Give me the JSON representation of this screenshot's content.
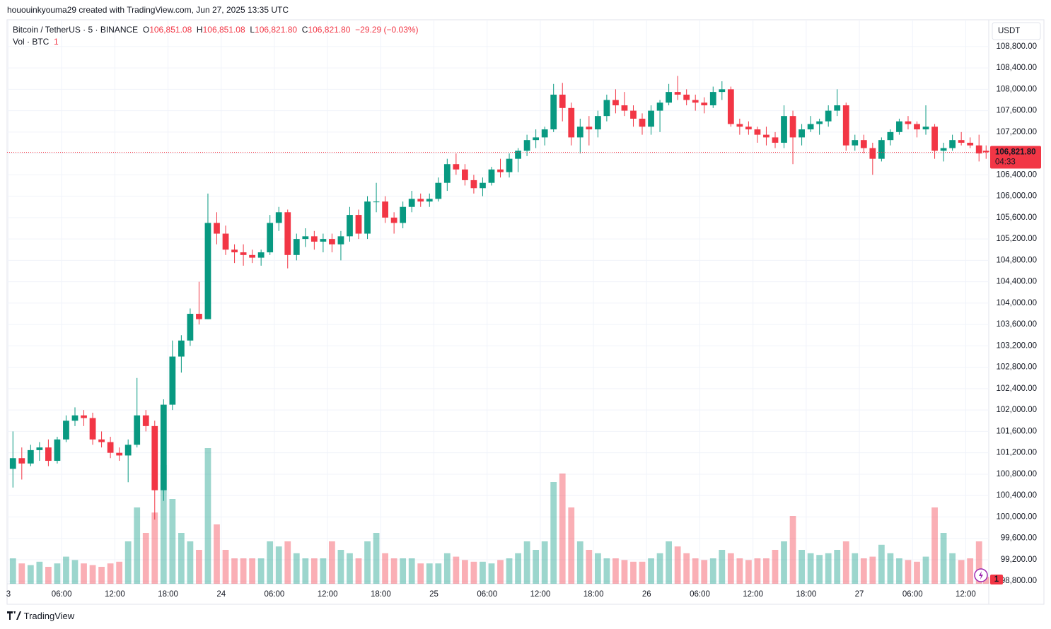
{
  "header": {
    "watermark": "hououinkyouma29 created with TradingView.com, Jun 27, 2025 13:35 UTC",
    "footer": "TradingView"
  },
  "chart_data": {
    "type": "candlestick",
    "legend": {
      "symbol": "Bitcoin / TetherUS · 5 · BINANCE",
      "o_label": "O",
      "o": "106,851.08",
      "h_label": "H",
      "h": "106,851.08",
      "l_label": "L",
      "l": "106,821.80",
      "c_label": "C",
      "c": "106,821.80",
      "change": "−29.29 (−0.03%)"
    },
    "vol_legend": {
      "label": "Vol · BTC",
      "value": "1"
    },
    "currency": "USDT",
    "alerts_badge": "1",
    "up_color": "#089981",
    "down_color": "#f23645",
    "grid": true,
    "last_price": {
      "value": 106821.8,
      "label": "106,821.80"
    },
    "countdown": "04:33",
    "xlim": [
      -0.16,
      110.6
    ],
    "xticks": [
      {
        "value": 0,
        "label": "3"
      },
      {
        "value": 6,
        "label": "06:00"
      },
      {
        "value": 12,
        "label": "12:00"
      },
      {
        "value": 18,
        "label": "18:00"
      },
      {
        "value": 24,
        "label": "24"
      },
      {
        "value": 30,
        "label": "06:00"
      },
      {
        "value": 36,
        "label": "12:00"
      },
      {
        "value": 42,
        "label": "18:00"
      },
      {
        "value": 48,
        "label": "25"
      },
      {
        "value": 54,
        "label": "06:00"
      },
      {
        "value": 60,
        "label": "12:00"
      },
      {
        "value": 66,
        "label": "18:00"
      },
      {
        "value": 72,
        "label": "26"
      },
      {
        "value": 78,
        "label": "06:00"
      },
      {
        "value": 84,
        "label": "12:00"
      },
      {
        "value": 90,
        "label": "18:00"
      },
      {
        "value": 96,
        "label": "27"
      },
      {
        "value": 102,
        "label": "06:00"
      },
      {
        "value": 108,
        "label": "12:00"
      }
    ],
    "ylim": [
      98750,
      109300
    ],
    "yticks": [
      {
        "value": 98800,
        "label": "98,800.00"
      },
      {
        "value": 99200,
        "label": "99,200.00"
      },
      {
        "value": 99600,
        "label": "99,600.00"
      },
      {
        "value": 100000,
        "label": "100,000.00"
      },
      {
        "value": 100400,
        "label": "100,400.00"
      },
      {
        "value": 100800,
        "label": "100,800.00"
      },
      {
        "value": 101200,
        "label": "101,200.00"
      },
      {
        "value": 101600,
        "label": "101,600.00"
      },
      {
        "value": 102000,
        "label": "102,000.00"
      },
      {
        "value": 102400,
        "label": "102,400.00"
      },
      {
        "value": 102800,
        "label": "102,800.00"
      },
      {
        "value": 103200,
        "label": "103,200.00"
      },
      {
        "value": 103600,
        "label": "103,600.00"
      },
      {
        "value": 104000,
        "label": "104,000.00"
      },
      {
        "value": 104400,
        "label": "104,400.00"
      },
      {
        "value": 104800,
        "label": "104,800.00"
      },
      {
        "value": 105200,
        "label": "105,200.00"
      },
      {
        "value": 105600,
        "label": "105,600.00"
      },
      {
        "value": 106000,
        "label": "106,000.00"
      },
      {
        "value": 106400,
        "label": "106,400.00"
      },
      {
        "value": 106800,
        "label": "106,800.00"
      },
      {
        "value": 107200,
        "label": "107,200.00"
      },
      {
        "value": 107600,
        "label": "107,600.00"
      },
      {
        "value": 108000,
        "label": "108,000.00"
      },
      {
        "value": 108400,
        "label": "108,400.00"
      },
      {
        "value": 108800,
        "label": "108,800.00"
      }
    ],
    "vlim": [
      0,
      1000
    ],
    "x": [
      0.5,
      1.5,
      2.5,
      3.5,
      4.5,
      5.5,
      6.5,
      7.5,
      8.5,
      9.5,
      10.5,
      11.5,
      12.5,
      13.5,
      14.5,
      15.5,
      16.5,
      17.5,
      18.5,
      19.5,
      20.5,
      21.5,
      22.5,
      23.5,
      24.5,
      25.5,
      26.5,
      27.5,
      28.5,
      29.5,
      30.5,
      31.5,
      32.5,
      33.5,
      34.5,
      35.5,
      36.5,
      37.5,
      38.5,
      39.5,
      40.5,
      41.5,
      42.5,
      43.5,
      44.5,
      45.5,
      46.5,
      47.5,
      48.5,
      49.5,
      50.5,
      51.5,
      52.5,
      53.5,
      54.5,
      55.5,
      56.5,
      57.5,
      58.5,
      59.5,
      60.5,
      61.5,
      62.5,
      63.5,
      64.5,
      65.5,
      66.5,
      67.5,
      68.5,
      69.5,
      70.5,
      71.5,
      72.5,
      73.5,
      74.5,
      75.5,
      76.5,
      77.5,
      78.5,
      79.5,
      80.5,
      81.5,
      82.5,
      83.5,
      84.5,
      85.5,
      86.5,
      87.5,
      88.5,
      89.5,
      90.5,
      91.5,
      92.5,
      93.5,
      94.5,
      95.5,
      96.5,
      97.5,
      98.5,
      99.5,
      100.5,
      101.5,
      102.5,
      103.5,
      104.5,
      105.5,
      106.5,
      107.5,
      108.5,
      109.5,
      110.3
    ],
    "open": [
      100900,
      101100,
      101000,
      101250,
      101300,
      101050,
      101450,
      101800,
      101900,
      101850,
      101450,
      101400,
      101200,
      101150,
      101350,
      101900,
      101700,
      100500,
      102100,
      103000,
      103300,
      103800,
      103700,
      105500,
      105300,
      105000,
      104950,
      104900,
      104850,
      104950,
      105500,
      105700,
      104900,
      105200,
      105250,
      105150,
      105200,
      105100,
      105250,
      105650,
      105300,
      105900,
      105900,
      105600,
      105500,
      105800,
      105950,
      105900,
      105950,
      106250,
      106600,
      106500,
      106300,
      106150,
      106250,
      106500,
      106450,
      106700,
      106850,
      107050,
      107100,
      107250,
      107900,
      107650,
      107100,
      107300,
      107250,
      107500,
      107800,
      107700,
      107600,
      107450,
      107300,
      107600,
      107750,
      107950,
      107900,
      107800,
      107750,
      107700,
      107950,
      108000,
      107350,
      107300,
      107250,
      107150,
      107100,
      107000,
      107500,
      107100,
      107250,
      107350,
      107400,
      107600,
      107700,
      106950,
      107050,
      106900,
      106700,
      107050,
      107200,
      107400,
      107350,
      107250,
      107300,
      106850,
      106900,
      107050,
      107000,
      106950,
      106850
    ],
    "high": [
      101600,
      101300,
      101350,
      101400,
      101450,
      101500,
      101900,
      102050,
      102000,
      101950,
      101600,
      101500,
      101300,
      101450,
      102600,
      102000,
      101800,
      102200,
      103300,
      103400,
      103900,
      104400,
      106050,
      105700,
      105450,
      105100,
      105100,
      105000,
      105000,
      105650,
      105800,
      105750,
      105300,
      105400,
      105350,
      105300,
      105300,
      105350,
      105800,
      105750,
      106000,
      106250,
      106000,
      105700,
      105900,
      106100,
      106050,
      106050,
      106350,
      106700,
      106800,
      106600,
      106400,
      106350,
      106550,
      106700,
      106800,
      106900,
      107150,
      107250,
      107300,
      108100,
      108120,
      107750,
      107450,
      107500,
      107600,
      107900,
      108000,
      107950,
      107700,
      107550,
      107700,
      107800,
      108100,
      108250,
      108000,
      107900,
      107850,
      108050,
      108150,
      108050,
      107450,
      107400,
      107300,
      107300,
      107200,
      107700,
      107600,
      107350,
      107500,
      107450,
      107700,
      108000,
      107750,
      107150,
      107150,
      107000,
      107100,
      107250,
      107450,
      107500,
      107400,
      107700,
      107350,
      107000,
      107150,
      107200,
      107100,
      107150,
      106950
    ],
    "low": [
      100550,
      100700,
      100950,
      101050,
      100950,
      101000,
      101400,
      101700,
      101700,
      101350,
      101300,
      101100,
      101050,
      100650,
      101300,
      101600,
      99950,
      100300,
      102000,
      102700,
      103200,
      103600,
      103700,
      105100,
      104900,
      104750,
      104700,
      104750,
      104700,
      104900,
      105350,
      104650,
      104800,
      105050,
      105000,
      104950,
      104950,
      104800,
      105150,
      105200,
      105200,
      105700,
      105500,
      105300,
      105400,
      105700,
      105800,
      105800,
      105900,
      106100,
      106400,
      106200,
      106050,
      106000,
      106200,
      106350,
      106350,
      106450,
      106750,
      106900,
      106950,
      107200,
      107400,
      106950,
      106800,
      106950,
      107100,
      107400,
      107550,
      107500,
      107300,
      107150,
      107150,
      107200,
      107700,
      107800,
      107700,
      107600,
      107550,
      107650,
      107800,
      107300,
      107150,
      107150,
      107000,
      106950,
      106900,
      106900,
      106600,
      106950,
      107200,
      107150,
      107300,
      107500,
      106850,
      106850,
      106800,
      106400,
      106650,
      106950,
      107150,
      107250,
      107100,
      107150,
      106700,
      106650,
      106850,
      106950,
      106900,
      106650,
      106700
    ],
    "close": [
      101100,
      101000,
      101250,
      101300,
      101050,
      101450,
      101800,
      101900,
      101850,
      101450,
      101400,
      101200,
      101150,
      101350,
      101900,
      101700,
      100500,
      102100,
      103000,
      103300,
      103800,
      103700,
      105500,
      105300,
      105000,
      104950,
      104900,
      104850,
      104950,
      105500,
      105700,
      104900,
      105200,
      105250,
      105150,
      105200,
      105100,
      105250,
      105650,
      105300,
      105900,
      105900,
      105600,
      105500,
      105800,
      105950,
      105900,
      105950,
      106250,
      106600,
      106500,
      106300,
      106150,
      106250,
      106500,
      106450,
      106700,
      106850,
      107050,
      107100,
      107250,
      107900,
      107650,
      107100,
      107300,
      107250,
      107500,
      107800,
      107700,
      107600,
      107450,
      107300,
      107600,
      107750,
      107950,
      107900,
      107800,
      107750,
      107700,
      107950,
      108000,
      107350,
      107300,
      107250,
      107150,
      107100,
      107000,
      107500,
      107100,
      107250,
      107350,
      107400,
      107600,
      107700,
      106950,
      107050,
      106900,
      106700,
      107050,
      107200,
      107400,
      107350,
      107250,
      107300,
      106850,
      106900,
      107050,
      107000,
      106950,
      106800,
      106821.8
    ],
    "volume": [
      150,
      120,
      110,
      130,
      100,
      120,
      160,
      140,
      120,
      110,
      100,
      120,
      130,
      250,
      450,
      300,
      420,
      700,
      500,
      300,
      250,
      200,
      800,
      350,
      200,
      150,
      150,
      150,
      150,
      250,
      220,
      250,
      180,
      150,
      150,
      150,
      250,
      200,
      180,
      150,
      250,
      300,
      180,
      150,
      150,
      150,
      120,
      120,
      120,
      180,
      160,
      140,
      130,
      130,
      120,
      140,
      150,
      180,
      250,
      200,
      250,
      600,
      650,
      450,
      250,
      200,
      180,
      150,
      150,
      140,
      130,
      130,
      150,
      180,
      250,
      220,
      180,
      150,
      140,
      150,
      200,
      180,
      150,
      140,
      150,
      150,
      200,
      250,
      400,
      200,
      180,
      170,
      180,
      200,
      250,
      180,
      150,
      160,
      230,
      180,
      150,
      140,
      130,
      160,
      450,
      300,
      180,
      140,
      150,
      250,
      40
    ]
  }
}
